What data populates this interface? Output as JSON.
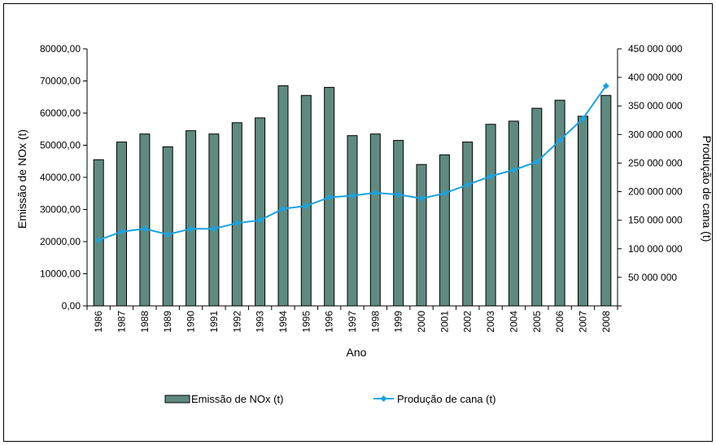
{
  "chart_data": {
    "type": "bar",
    "xlabel": "Ano",
    "categories": [
      "1986",
      "1987",
      "1988",
      "1989",
      "1990",
      "1991",
      "1992",
      "1993",
      "1994",
      "1995",
      "1996",
      "1997",
      "1998",
      "1999",
      "2000",
      "2001",
      "2002",
      "2003",
      "2004",
      "2005",
      "2006",
      "2007",
      "2008"
    ],
    "series": [
      {
        "name": "Emissão de NOx (t)",
        "type": "bar",
        "axis": "left",
        "values": [
          45500,
          51000,
          53500,
          49500,
          54500,
          53500,
          57000,
          58500,
          68500,
          65500,
          68000,
          53000,
          53500,
          51500,
          44000,
          47000,
          51000,
          56500,
          57500,
          61500,
          64000,
          59000,
          65500
        ]
      },
      {
        "name": "Produção de cana (t)",
        "type": "line",
        "axis": "right",
        "values": [
          115000000,
          130000000,
          135000000,
          125000000,
          135000000,
          135000000,
          145000000,
          150000000,
          170000000,
          175000000,
          190000000,
          193000000,
          198000000,
          195000000,
          188000000,
          197000000,
          212000000,
          227000000,
          238000000,
          252000000,
          290000000,
          328000000,
          385000000
        ]
      }
    ],
    "ylabel": "Emissão de NOx (t)",
    "ylim": [
      0,
      80000
    ],
    "yticks": [
      "0,00",
      "10000,00",
      "20000,00",
      "30000,00",
      "40000,00",
      "50000,00",
      "60000,00",
      "70000,00",
      "80000,00"
    ],
    "y2label": "Produção de cana (t)",
    "y2lim": [
      0,
      450000000
    ],
    "y2ticks": [
      "",
      "50 000 000",
      "100 000 000",
      "150 000 000",
      "200 000 000",
      "250 000 000",
      "300 000 000",
      "350 000 000",
      "400 000 000",
      "450 000 000"
    ],
    "legend_position": "bottom",
    "colors": {
      "bar_fill": "#5f8a80",
      "bar_stroke": "#000000",
      "line": "#1aa3e0",
      "marker": "#1aa3e0"
    }
  }
}
